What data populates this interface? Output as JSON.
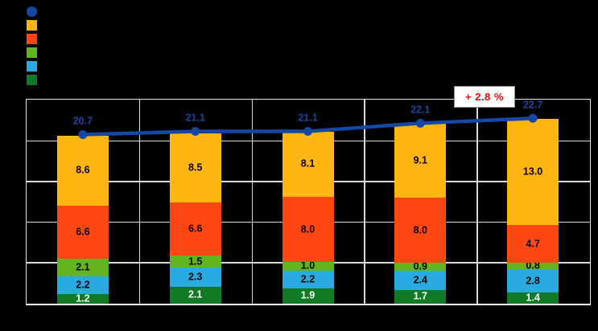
{
  "legend": {
    "items": [
      {
        "name": "total-line-marker",
        "shape": "circle",
        "color": "#1747A5"
      },
      {
        "name": "orange-series",
        "shape": "square",
        "color": "#FFB612"
      },
      {
        "name": "red-orange-series",
        "shape": "square",
        "color": "#FF4713"
      },
      {
        "name": "green-series",
        "shape": "square",
        "color": "#62B51E"
      },
      {
        "name": "light-blue-series",
        "shape": "square",
        "color": "#29ABE2"
      },
      {
        "name": "dark-green-series",
        "shape": "square",
        "color": "#117A25"
      }
    ]
  },
  "chart_data": {
    "type": "bar",
    "subtype": "stacked-columns-with-total-line",
    "categories": [
      "",
      "",
      "",
      "",
      ""
    ],
    "series": [
      {
        "name": "dark-green-bottom",
        "color": "#117A25",
        "label_color": "#FFFFFF",
        "values": [
          1.2,
          2.1,
          1.9,
          1.7,
          1.4
        ]
      },
      {
        "name": "light-blue",
        "color": "#29ABE2",
        "label_color": "#000000",
        "values": [
          2.2,
          2.3,
          2.2,
          2.4,
          2.8
        ]
      },
      {
        "name": "green",
        "color": "#62B51E",
        "label_color": "#000000",
        "values": [
          2.1,
          1.5,
          1.0,
          0.9,
          0.8
        ]
      },
      {
        "name": "red-orange",
        "color": "#FF4713",
        "label_color": "#000000",
        "values": [
          6.6,
          6.6,
          8.0,
          8.0,
          4.7
        ]
      },
      {
        "name": "orange-top",
        "color": "#FFB612",
        "label_color": "#000000",
        "values": [
          8.6,
          8.5,
          8.1,
          9.1,
          13.0
        ]
      }
    ],
    "line_series": {
      "name": "total",
      "color": "#1747A5",
      "label_color": "#1747A5",
      "values": [
        20.7,
        21.1,
        21.1,
        22.1,
        22.7
      ]
    },
    "annotation": {
      "text": "+ 2.8 %",
      "color": "#FF0000",
      "background": "#FFFFFF"
    },
    "ylim": [
      0,
      25
    ],
    "grid": true,
    "legend_position": "top-left",
    "background": "#000000"
  }
}
